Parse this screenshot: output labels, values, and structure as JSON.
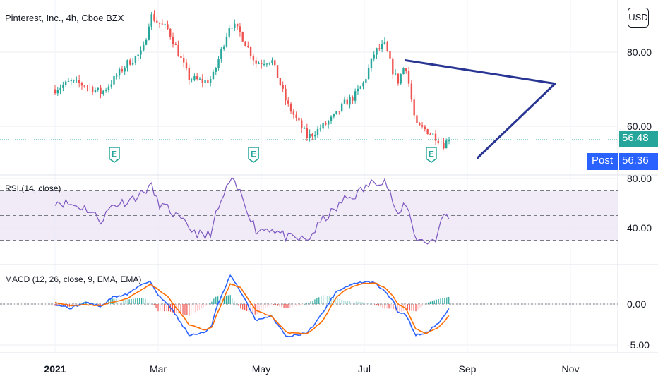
{
  "header": {
    "title": "Pinterest, Inc., 4h, Cboe BZX",
    "currency": "USD"
  },
  "price_tags": {
    "last": "56.48",
    "post_label": "Post",
    "post": "56.36"
  },
  "colors": {
    "up": "#26a69a",
    "down": "#ef5350",
    "trendline": "#283593",
    "rsi_line": "#7e57c2",
    "rsi_band": "#ede7f6",
    "macd_line": "#2962ff",
    "signal_line": "#ff6d00",
    "last_price_tag": "#26a69a",
    "post_tag": "#2962ff",
    "earnings": "#26a69a"
  },
  "indicators": {
    "rsi_label": "RSI (14, close)",
    "macd_label": "MACD (12, 26, close, 9, EMA, EMA)"
  },
  "chart_data": [
    {
      "type": "candlestick",
      "title": "Pinterest, Inc., 4h, Cboe BZX",
      "x_ticks": [
        "2021",
        "Mar",
        "May",
        "Jul",
        "Sep",
        "Nov"
      ],
      "y_ticks": [
        "80.00",
        "60.00"
      ],
      "ylim": [
        52,
        95
      ],
      "grid": true,
      "earnings_markers": [
        {
          "month": "Feb 2021",
          "label": "E"
        },
        {
          "month": "Apr 2021",
          "label": "E"
        },
        {
          "month": "Jul 2021",
          "label": "E"
        }
      ],
      "series": [
        {
          "name": "price",
          "x_months": [
            0.0,
            0.3,
            0.6,
            0.9,
            1.1,
            1.4,
            1.7,
            1.85,
            2.0,
            2.2,
            2.6,
            2.9,
            3.05,
            3.1,
            3.4,
            3.6,
            3.9,
            4.2,
            4.5,
            4.9,
            5.2,
            5.45,
            5.6,
            5.8,
            6.0,
            6.2,
            6.4,
            6.55,
            6.65,
            6.8,
            7.0,
            7.2,
            7.4,
            7.55,
            7.65
          ],
          "values": [
            70,
            72,
            71,
            69,
            72,
            77,
            80,
            90,
            88,
            86,
            73,
            72,
            73,
            75,
            88,
            85,
            77,
            78,
            66,
            57,
            60,
            63,
            66,
            68,
            72,
            80,
            82,
            75,
            72,
            77,
            60,
            59,
            57,
            55,
            57
          ]
        }
      ],
      "trendlines": [
        {
          "from": {
            "month": 6.8,
            "value": 77.8
          },
          "to": {
            "month": 9.7,
            "value": 71.5
          }
        },
        {
          "from": {
            "month": 9.7,
            "value": 71.5
          },
          "to": {
            "month": 8.2,
            "value": 51.5
          }
        }
      ]
    },
    {
      "type": "line",
      "title": "RSI (14, close)",
      "y_ticks": [
        "80.00",
        "40.00"
      ],
      "ylim": [
        28,
        85
      ],
      "bands": {
        "upper": 70,
        "middle": 50,
        "lower": 30
      },
      "series": [
        {
          "x_months": [
            0.0,
            0.3,
            0.6,
            0.9,
            1.1,
            1.4,
            1.7,
            1.85,
            2.0,
            2.2,
            2.6,
            2.9,
            3.05,
            3.1,
            3.4,
            3.6,
            3.9,
            4.2,
            4.5,
            4.9,
            5.2,
            5.45,
            5.6,
            5.8,
            6.0,
            6.2,
            6.4,
            6.55,
            6.65,
            6.8,
            7.0,
            7.2,
            7.4,
            7.55,
            7.65
          ],
          "values": [
            62,
            59,
            56,
            46,
            58,
            62,
            68,
            75,
            60,
            55,
            40,
            32,
            38,
            48,
            79,
            68,
            38,
            40,
            32,
            30,
            47,
            55,
            63,
            66,
            72,
            78,
            79,
            62,
            47,
            62,
            32,
            28,
            32,
            52,
            49
          ]
        }
      ]
    },
    {
      "type": "line",
      "title": "MACD (12, 26, close, 9, EMA, EMA)",
      "y_ticks": [
        "0.00",
        "-5.00"
      ],
      "ylim": [
        -5.5,
        4
      ],
      "series": [
        {
          "name": "macd",
          "x_months": [
            0.0,
            0.3,
            0.6,
            0.9,
            1.1,
            1.4,
            1.7,
            1.85,
            2.0,
            2.2,
            2.6,
            2.9,
            3.05,
            3.1,
            3.4,
            3.6,
            3.9,
            4.2,
            4.5,
            4.9,
            5.2,
            5.45,
            5.6,
            5.8,
            6.0,
            6.2,
            6.4,
            6.55,
            6.65,
            6.8,
            7.0,
            7.2,
            7.4,
            7.55,
            7.65
          ],
          "values": [
            0.0,
            -0.5,
            0.2,
            -0.3,
            0.8,
            1.2,
            2.5,
            2.8,
            1.0,
            0.0,
            -3.8,
            -3.5,
            -2.5,
            -1.0,
            3.5,
            1.5,
            -2.0,
            -1.5,
            -4.0,
            -3.5,
            -1.0,
            1.5,
            2.0,
            2.5,
            2.7,
            2.6,
            1.5,
            0.5,
            -1.0,
            -1.2,
            -3.8,
            -3.5,
            -2.5,
            -1.5,
            -0.5
          ]
        },
        {
          "name": "signal",
          "x_months": [
            0.0,
            0.3,
            0.6,
            0.9,
            1.1,
            1.4,
            1.7,
            1.85,
            2.0,
            2.2,
            2.6,
            2.9,
            3.05,
            3.1,
            3.4,
            3.6,
            3.9,
            4.2,
            4.5,
            4.9,
            5.2,
            5.45,
            5.6,
            5.8,
            6.0,
            6.2,
            6.4,
            6.55,
            6.65,
            6.8,
            7.0,
            7.2,
            7.4,
            7.55,
            7.65
          ],
          "values": [
            0.2,
            -0.2,
            -0.1,
            -0.2,
            0.2,
            0.7,
            1.8,
            2.4,
            1.8,
            0.8,
            -2.5,
            -3.2,
            -2.8,
            -1.8,
            2.5,
            2.0,
            -0.8,
            -1.5,
            -3.5,
            -3.6,
            -2.0,
            0.8,
            1.6,
            2.2,
            2.5,
            2.6,
            2.0,
            1.0,
            0.0,
            -0.5,
            -3.0,
            -3.6,
            -3.0,
            -2.2,
            -1.3
          ]
        }
      ]
    }
  ]
}
